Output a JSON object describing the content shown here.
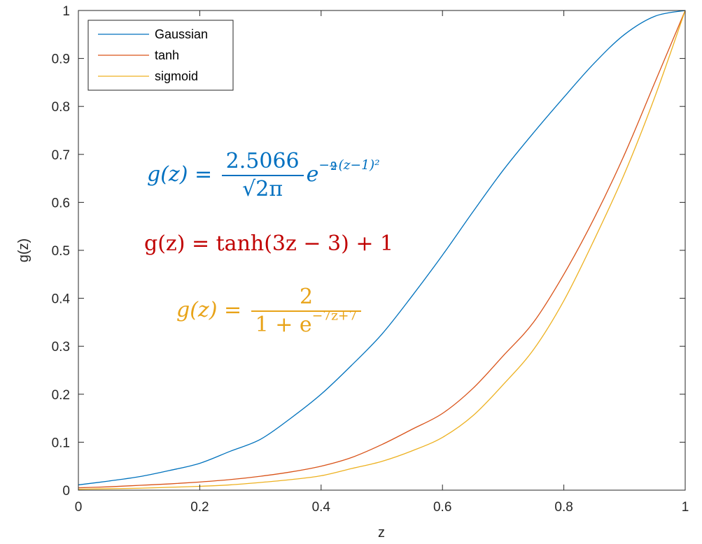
{
  "chart_data": {
    "type": "line",
    "title": "",
    "xlabel": "z",
    "ylabel": "g(z)",
    "xlim": [
      0,
      1
    ],
    "ylim": [
      0,
      1
    ],
    "xticks": [
      0,
      0.2,
      0.4,
      0.6,
      0.8,
      1
    ],
    "xtick_labels": [
      "0",
      "0.2",
      "0.4",
      "0.6",
      "0.8",
      "1"
    ],
    "yticks": [
      0,
      0.1,
      0.2,
      0.3,
      0.4,
      0.5,
      0.6,
      0.7,
      0.8,
      0.9,
      1
    ],
    "ytick_labels": [
      "0",
      "0.1",
      "0.2",
      "0.3",
      "0.4",
      "0.5",
      "0.6",
      "0.7",
      "0.8",
      "0.9",
      "1"
    ],
    "grid": false,
    "legend_position": "top-left",
    "x": [
      0,
      0.05,
      0.1,
      0.15,
      0.2,
      0.25,
      0.3,
      0.35,
      0.4,
      0.45,
      0.5,
      0.55,
      0.6,
      0.65,
      0.7,
      0.75,
      0.8,
      0.85,
      0.9,
      0.95,
      1
    ],
    "series": [
      {
        "name": "Gaussian",
        "color": "#0072BD",
        "values": [
          0.011,
          0.019,
          0.028,
          0.041,
          0.056,
          0.081,
          0.106,
          0.15,
          0.2,
          0.26,
          0.325,
          0.405,
          0.49,
          0.58,
          0.667,
          0.745,
          0.819,
          0.89,
          0.95,
          0.988,
          1.0
        ]
      },
      {
        "name": "tanh",
        "color": "#D95319",
        "values": [
          0.005,
          0.007,
          0.01,
          0.013,
          0.017,
          0.022,
          0.029,
          0.038,
          0.05,
          0.068,
          0.095,
          0.127,
          0.16,
          0.212,
          0.28,
          0.35,
          0.45,
          0.567,
          0.7,
          0.85,
          1.0
        ]
      },
      {
        "name": "sigmoid",
        "color": "#EDB120",
        "values": [
          0.002,
          0.003,
          0.004,
          0.006,
          0.008,
          0.011,
          0.016,
          0.022,
          0.03,
          0.045,
          0.06,
          0.082,
          0.11,
          0.155,
          0.22,
          0.293,
          0.395,
          0.522,
          0.66,
          0.82,
          1.0
        ]
      }
    ],
    "annotations": {
      "gaussian": {
        "lhs": "g(z) = ",
        "numerator": "2.5066",
        "denominator": "√2π",
        "base": "e",
        "exp_sign": "−",
        "exp_num": "9",
        "exp_den": "2",
        "exp_tail": "(z−1)²",
        "color": "#0070C0"
      },
      "tanh": {
        "text": "g(z) = tanh(3z − 3) + 1",
        "color": "#C00000"
      },
      "sigmoid": {
        "lhs": "g(z) = ",
        "numerator": "2",
        "denominator_base": "1 + e",
        "denominator_exp": "−7z+7",
        "color": "#E8A318"
      }
    }
  }
}
